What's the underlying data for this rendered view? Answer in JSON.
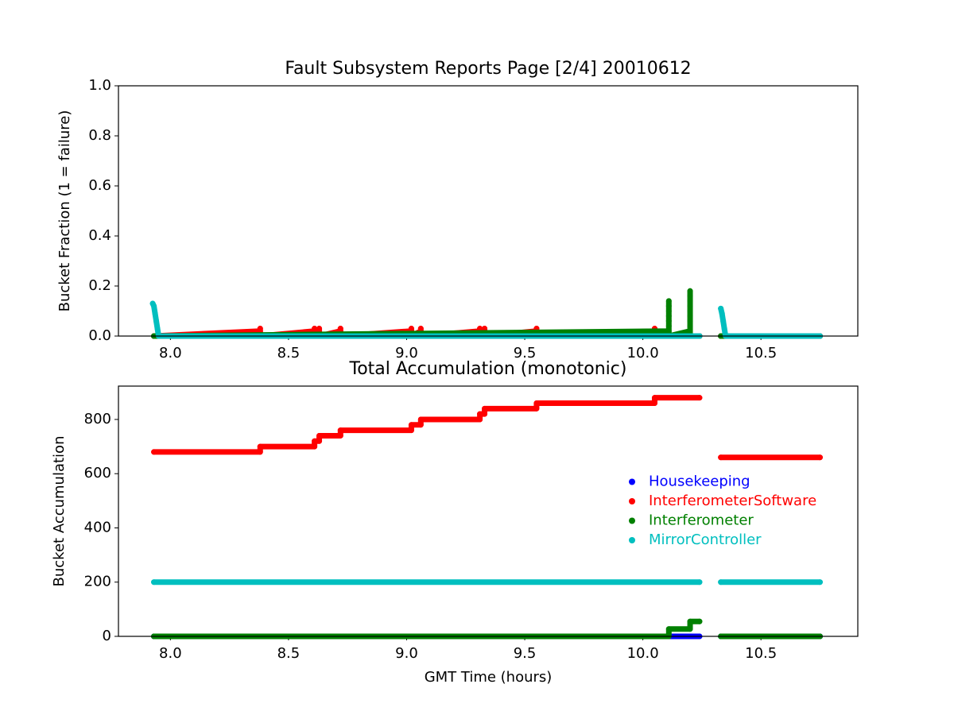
{
  "chart_data": [
    {
      "type": "scatter",
      "title": "Fault Subsystem Reports Page [2/4] 20010612",
      "ylabel": "Bucket Fraction (1 = failure)",
      "xlim": [
        7.78,
        10.91
      ],
      "ylim": [
        0,
        1
      ],
      "xticks": [
        {
          "value": 8,
          "label": "8.0"
        },
        8.5,
        {
          "value": 9,
          "label": "9.0"
        },
        9.5,
        {
          "value": 10,
          "label": "10.0"
        },
        10.5
      ],
      "yticks": [
        {
          "value": 0,
          "label": "0.0"
        },
        0.2,
        0.4,
        0.6,
        0.8,
        {
          "value": 1,
          "label": "1.0"
        }
      ],
      "grid": false,
      "series": [
        {
          "name": "Housekeeping",
          "color": "#0000ff",
          "x": [
            7.93,
            10.24,
            10.285,
            10.33,
            10.75
          ],
          "values": [
            0,
            0,
            null,
            0,
            0
          ]
        },
        {
          "name": "InterferometerSoftware",
          "color": "#ff0000",
          "x": [
            7.93,
            8.38,
            8.38,
            8.38,
            8.61,
            8.61,
            8.61,
            8.63,
            8.63,
            8.63,
            8.72,
            8.72,
            8.72,
            9.02,
            9.02,
            9.02,
            9.06,
            9.06,
            9.06,
            9.31,
            9.31,
            9.31,
            9.33,
            9.33,
            9.33,
            9.55,
            9.55,
            9.55,
            10.05,
            10.05,
            10.05,
            10.24,
            10.285,
            10.33,
            10.75
          ],
          "values": [
            0,
            0.02,
            0.03,
            0,
            0.02,
            0.03,
            0,
            0.02,
            0.03,
            0,
            0.02,
            0.03,
            0,
            0.02,
            0.03,
            0,
            0.02,
            0.03,
            0,
            0.02,
            0.03,
            0,
            0.02,
            0.03,
            0,
            0.02,
            0.03,
            0,
            0.02,
            0.03,
            0,
            0,
            null,
            0,
            0
          ]
        },
        {
          "name": "Interferometer",
          "color": "#008000",
          "x": [
            7.93,
            10.11,
            10.11,
            10.11,
            10.11,
            10.11,
            10.11,
            10.11,
            10.11,
            10.2,
            10.2,
            10.2,
            10.2,
            10.2,
            10.2,
            10.2,
            10.2,
            10.2,
            10.2,
            10.24,
            10.285,
            10.33,
            10.75
          ],
          "values": [
            0,
            0.02,
            0.04,
            0.06,
            0.08,
            0.1,
            0.12,
            0.14,
            0,
            0.02,
            0.04,
            0.06,
            0.08,
            0.1,
            0.12,
            0.14,
            0.16,
            0.18,
            0,
            0,
            null,
            0,
            0
          ]
        },
        {
          "name": "MirrorController",
          "color": "#00bfbf",
          "x": [
            7.925,
            7.93,
            7.935,
            7.94,
            7.945,
            7.95,
            10.24,
            10.285,
            10.33,
            10.335,
            10.34,
            10.345,
            10.35,
            10.75
          ],
          "values": [
            0.13,
            0.12,
            0.09,
            0.06,
            0.03,
            0,
            0,
            null,
            0.11,
            0.09,
            0.06,
            0.03,
            0,
            0
          ]
        }
      ]
    },
    {
      "type": "scatter",
      "title": "Total Accumulation (monotonic)",
      "xlabel": "GMT Time (hours)",
      "ylabel": "Bucket Accumulation",
      "xlim": [
        7.78,
        10.91
      ],
      "ylim": [
        0,
        923
      ],
      "xticks": [
        {
          "value": 8,
          "label": "8.0"
        },
        8.5,
        {
          "value": 9,
          "label": "9.0"
        },
        9.5,
        {
          "value": 10,
          "label": "10.0"
        },
        10.5
      ],
      "yticks": [
        0,
        200,
        400,
        600,
        800
      ],
      "grid": false,
      "legend": "center right",
      "series": [
        {
          "name": "Housekeeping",
          "color": "#0000ff",
          "x": [
            7.93,
            10.24,
            10.285,
            10.33,
            10.75
          ],
          "values": [
            0,
            0,
            null,
            0,
            0
          ]
        },
        {
          "name": "InterferometerSoftware",
          "color": "#ff0000",
          "x": [
            7.93,
            8.38,
            8.38,
            8.61,
            8.61,
            8.63,
            8.63,
            8.72,
            8.72,
            9.02,
            9.02,
            9.06,
            9.06,
            9.31,
            9.31,
            9.33,
            9.33,
            9.55,
            9.55,
            10.05,
            10.05,
            10.24,
            10.285,
            10.33,
            10.75
          ],
          "values": [
            680,
            680,
            700,
            700,
            720,
            720,
            740,
            740,
            760,
            760,
            780,
            780,
            800,
            800,
            820,
            820,
            840,
            840,
            860,
            860,
            880,
            880,
            null,
            660,
            660
          ]
        },
        {
          "name": "Interferometer",
          "color": "#008000",
          "x": [
            7.93,
            10.11,
            10.11,
            10.2,
            10.2,
            10.24,
            10.285,
            10.33,
            10.75
          ],
          "values": [
            0,
            0,
            27,
            27,
            55,
            55,
            null,
            0,
            0
          ]
        },
        {
          "name": "MirrorController",
          "color": "#00bfbf",
          "x": [
            7.93,
            10.24,
            10.285,
            10.33,
            10.75
          ],
          "values": [
            200,
            200,
            null,
            200,
            200
          ]
        }
      ]
    }
  ]
}
